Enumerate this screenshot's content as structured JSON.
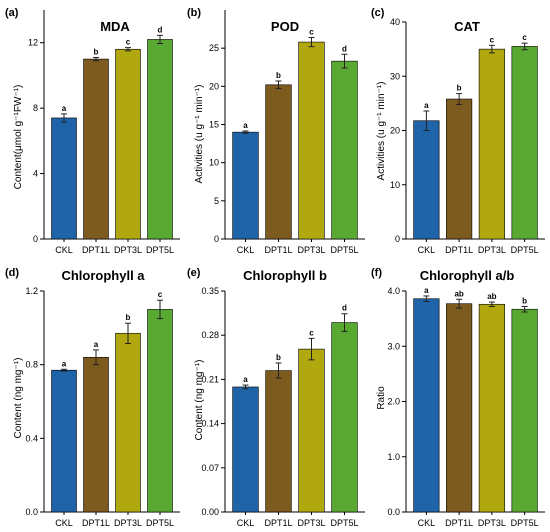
{
  "colors": {
    "CKL": "#1f64a8",
    "DPT1L": "#7d5a1e",
    "DPT3L": "#b0a80e",
    "DPT5L": "#58a832"
  },
  "chart_data": [
    {
      "type": "bar",
      "letter": "(a)",
      "title": "MDA",
      "ylabel": "Content(μmol g⁻¹FW⁻¹)",
      "ylim": [
        0,
        14
      ],
      "yticks": [
        0,
        4,
        8,
        12
      ],
      "ytick_labels": [
        "0",
        "4",
        "8",
        "12"
      ],
      "categories": [
        "CKL",
        "DPT1L",
        "DPT3L",
        "DPT5L"
      ],
      "values": [
        7.4,
        11.0,
        11.6,
        12.2
      ],
      "errors": [
        0.25,
        0.1,
        0.1,
        0.25
      ],
      "sig": [
        "a",
        "b",
        "c",
        "d"
      ]
    },
    {
      "type": "bar",
      "letter": "(b)",
      "title": "POD",
      "ylabel": "Activities (u g⁻¹ min⁻¹)",
      "ylim": [
        0,
        30
      ],
      "yticks": [
        0,
        5,
        10,
        15,
        20,
        25
      ],
      "ytick_labels": [
        "0",
        "5",
        "10",
        "15",
        "20",
        "25"
      ],
      "categories": [
        "CKL",
        "DPT1L",
        "DPT3L",
        "DPT5L"
      ],
      "values": [
        14.0,
        20.2,
        25.8,
        23.3
      ],
      "errors": [
        0.15,
        0.5,
        0.6,
        0.9
      ],
      "sig": [
        "a",
        "b",
        "c",
        "d"
      ]
    },
    {
      "type": "bar",
      "letter": "(c)",
      "title": "CAT",
      "ylabel": "Activities (u g⁻¹ min⁻¹)",
      "ylim": [
        0,
        40
      ],
      "yticks": [
        0,
        10,
        20,
        30,
        40
      ],
      "ytick_labels": [
        "0",
        "10",
        "20",
        "30",
        "40"
      ],
      "categories": [
        "CKL",
        "DPT1L",
        "DPT3L",
        "DPT5L"
      ],
      "values": [
        21.8,
        25.8,
        35.0,
        35.5
      ],
      "errors": [
        1.8,
        1.0,
        0.7,
        0.6
      ],
      "sig": [
        "a",
        "b",
        "c",
        "c"
      ]
    },
    {
      "type": "bar",
      "letter": "(d)",
      "title": "Chlorophyll a",
      "ylabel": "Content (ng mg⁻¹)",
      "ylim": [
        0,
        1.2
      ],
      "yticks": [
        0,
        0.4,
        0.8,
        1.2
      ],
      "ytick_labels": [
        "0.0",
        "0.4",
        "0.8",
        "1.2"
      ],
      "categories": [
        "CKL",
        "DPT1L",
        "DPT3L",
        "DPT5L"
      ],
      "values": [
        0.77,
        0.84,
        0.97,
        1.1
      ],
      "errors": [
        0.005,
        0.04,
        0.055,
        0.05
      ],
      "sig": [
        "a",
        "a",
        "b",
        "c"
      ]
    },
    {
      "type": "bar",
      "letter": "(e)",
      "title": "Chlorophyll b",
      "ylabel": "Content (ng mg⁻¹)",
      "ylim": [
        0,
        0.35
      ],
      "yticks": [
        0,
        0.07,
        0.14,
        0.21,
        0.28,
        0.35
      ],
      "ytick_labels": [
        "0.00",
        "0.07",
        "0.14",
        "0.21",
        "0.28",
        "0.35"
      ],
      "categories": [
        "CKL",
        "DPT1L",
        "DPT3L",
        "DPT5L"
      ],
      "values": [
        0.198,
        0.224,
        0.258,
        0.3
      ],
      "errors": [
        0.003,
        0.012,
        0.017,
        0.014
      ],
      "sig": [
        "a",
        "b",
        "c",
        "d"
      ]
    },
    {
      "type": "bar",
      "letter": "(f)",
      "title": "Chlorophyll a/b",
      "ylabel": "Ratio",
      "ylim": [
        0,
        4.0
      ],
      "yticks": [
        0,
        1,
        2,
        3,
        4
      ],
      "ytick_labels": [
        "0.0",
        "1.0",
        "2.0",
        "3.0",
        "4.0"
      ],
      "categories": [
        "CKL",
        "DPT1L",
        "DPT3L",
        "DPT5L"
      ],
      "values": [
        3.86,
        3.77,
        3.76,
        3.67
      ],
      "errors": [
        0.05,
        0.08,
        0.04,
        0.05
      ],
      "sig": [
        "a",
        "ab",
        "ab",
        "b"
      ]
    }
  ]
}
